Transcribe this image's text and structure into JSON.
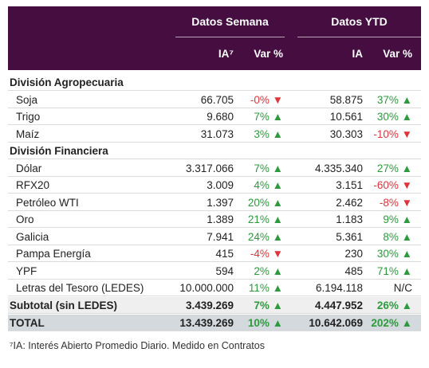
{
  "header": {
    "groups": [
      "Datos Semana",
      "Datos YTD"
    ],
    "columns": [
      "IA⁷",
      "Var %",
      "IA",
      "Var %"
    ]
  },
  "sections": [
    {
      "title": "División Agropecuaria",
      "rows": [
        [
          "Soja",
          "66.705",
          "-0% ▼",
          "58.875",
          "37% ▲"
        ],
        [
          "Trigo",
          "9.680",
          "7% ▲",
          "10.561",
          "30% ▲"
        ],
        [
          "Maíz",
          "31.073",
          "3% ▲",
          "30.303",
          "-10% ▼"
        ]
      ]
    },
    {
      "title": "División Financiera",
      "rows": [
        [
          "Dólar",
          "3.317.066",
          "7% ▲",
          "4.335.340",
          "27% ▲"
        ],
        [
          "RFX20",
          "3.009",
          "4% ▲",
          "3.151",
          "-60% ▼"
        ],
        [
          "Petróleo WTI",
          "1.397",
          "20% ▲",
          "2.462",
          "-8% ▼"
        ],
        [
          "Oro",
          "1.389",
          "21% ▲",
          "1.183",
          "9% ▲"
        ],
        [
          "Galicia",
          "7.941",
          "24% ▲",
          "5.361",
          "8% ▲"
        ],
        [
          "Pampa Energía",
          "415",
          "-4% ▼",
          "230",
          "30% ▲"
        ],
        [
          "YPF",
          "594",
          "2% ▲",
          "485",
          "71% ▲"
        ],
        [
          "Letras del Tesoro (LEDES)",
          "10.000.000",
          "11% ▲",
          "6.194.118",
          "N/C"
        ]
      ]
    }
  ],
  "subtotal": [
    "Subtotal (sin LEDES)",
    "3.439.269",
    "7% ▲",
    "4.447.952",
    "26% ▲"
  ],
  "total": [
    "TOTAL",
    "13.439.269",
    "10% ▲",
    "10.642.069",
    "202% ▲"
  ],
  "footnote": "⁷IA: Interés Abierto Promedio Diario. Medido en Contratos"
}
